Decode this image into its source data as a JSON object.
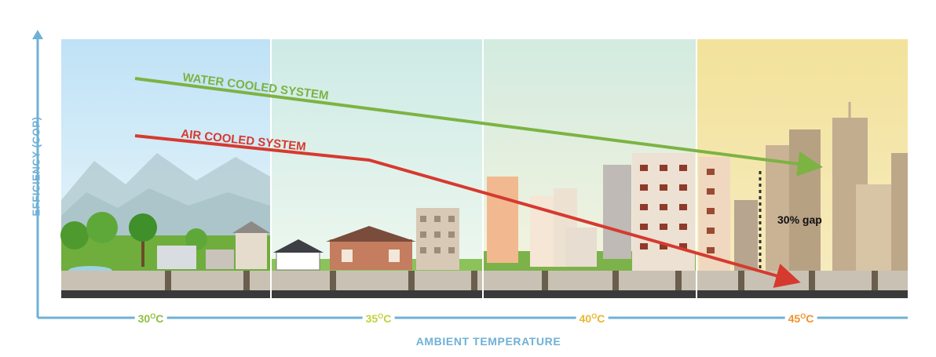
{
  "y_axis_label": "EFFICIENCY (COP)",
  "x_axis_label": "AMBIENT TEMPERATURE",
  "temperatures": [
    {
      "value": "30",
      "degree": "O",
      "unit": "C",
      "color": "#8dc03f"
    },
    {
      "value": "35",
      "degree": "O",
      "unit": "C",
      "color": "#c2d23a"
    },
    {
      "value": "40",
      "degree": "O",
      "unit": "C",
      "color": "#e7b830"
    },
    {
      "value": "45",
      "degree": "O",
      "unit": "C",
      "color": "#f0922b"
    }
  ],
  "water_series": {
    "label": "WATER COOLED SYSTEM",
    "color": "#7cb342"
  },
  "air_series": {
    "label": "AIR COOLED SYSTEM",
    "color": "#d63a2f"
  },
  "gap_label": "30% gap",
  "colors": {
    "axis": "#6fb1d6"
  }
}
